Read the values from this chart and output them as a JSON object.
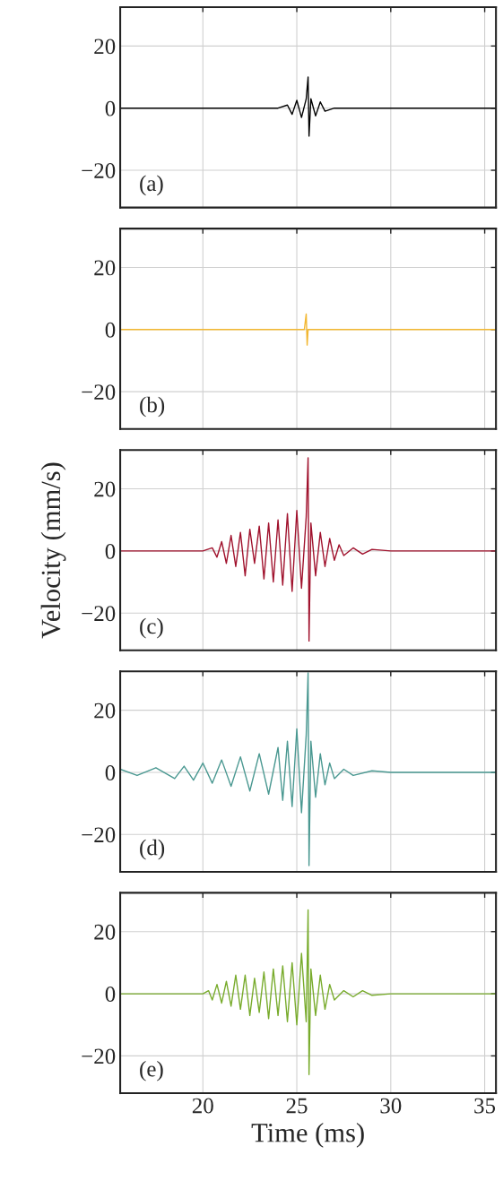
{
  "chart_data": [
    {
      "type": "line",
      "x": [
        15.6,
        24.0,
        24.5,
        24.75,
        25.0,
        25.25,
        25.5,
        25.6,
        25.65,
        25.75,
        26.0,
        26.25,
        26.5,
        27.0,
        35.6
      ],
      "series": [
        {
          "color": "#000000",
          "values": [
            0,
            0,
            1,
            -2,
            2.5,
            -3,
            3,
            10,
            -9,
            3,
            -2.5,
            2,
            -1,
            0,
            0
          ]
        }
      ],
      "xlim": [
        15.6,
        35.6
      ],
      "xticks": [
        20,
        25,
        30,
        35
      ],
      "ylim": [
        -32,
        32.5
      ],
      "yticks": [
        -20,
        0,
        20
      ],
      "grid": true,
      "tick_labels": "y",
      "annotations": [
        "(a)"
      ]
    },
    {
      "type": "line",
      "x": [
        15.6,
        25.4,
        25.5,
        25.55,
        25.6,
        35.6
      ],
      "series": [
        {
          "color": "#f2b731",
          "values": [
            0,
            0,
            5,
            -5,
            0,
            0
          ]
        }
      ],
      "xlim": [
        15.6,
        35.6
      ],
      "xticks": [
        20,
        25,
        30,
        35
      ],
      "ylim": [
        -32,
        32.5
      ],
      "yticks": [
        -20,
        0,
        20
      ],
      "grid": true,
      "tick_labels": "y",
      "annotations": [
        "(b)"
      ]
    },
    {
      "type": "line",
      "x": [
        15.6,
        20.0,
        20.5,
        20.75,
        21.0,
        21.25,
        21.5,
        21.75,
        22.0,
        22.25,
        22.5,
        22.75,
        23.0,
        23.25,
        23.5,
        23.75,
        24.0,
        24.25,
        24.5,
        24.75,
        25.0,
        25.25,
        25.5,
        25.6,
        25.65,
        25.75,
        26.0,
        26.25,
        26.5,
        26.75,
        27.0,
        27.25,
        27.5,
        28.0,
        28.5,
        29.0,
        30.0,
        35.6
      ],
      "series": [
        {
          "color": "#a0122d",
          "values": [
            0,
            0,
            1,
            -2,
            3,
            -4,
            5,
            -5,
            6,
            -8,
            7,
            -4,
            8,
            -9,
            9,
            -10,
            10,
            -11,
            12,
            -13,
            13,
            -12,
            11,
            30,
            -29,
            9,
            -8,
            6,
            -5,
            4,
            -3,
            2,
            -1.5,
            1,
            -1,
            0.5,
            0,
            0
          ]
        }
      ],
      "xlim": [
        15.6,
        35.6
      ],
      "xticks": [
        20,
        25,
        30,
        35
      ],
      "ylim": [
        -32,
        32.5
      ],
      "yticks": [
        -20,
        0,
        20
      ],
      "grid": true,
      "tick_labels": "y",
      "ylabel": "Velocity (mm/s)",
      "annotations": [
        "(c)"
      ]
    },
    {
      "type": "line",
      "x": [
        15.6,
        16.5,
        17.5,
        18.5,
        19.0,
        19.5,
        20.0,
        20.5,
        21.0,
        21.5,
        22.0,
        22.5,
        23.0,
        23.5,
        24.0,
        24.25,
        24.5,
        24.75,
        25.0,
        25.25,
        25.5,
        25.6,
        25.65,
        25.75,
        26.0,
        26.25,
        26.5,
        26.75,
        27.0,
        27.5,
        28.0,
        29.0,
        30.0,
        35.6
      ],
      "series": [
        {
          "color": "#4a9891",
          "values": [
            1,
            -1,
            1.5,
            -2,
            2,
            -2.5,
            3,
            -3.5,
            4,
            -4.5,
            5,
            -6,
            6,
            -7,
            8,
            -9,
            10,
            -11,
            14,
            -13,
            12,
            32,
            -30,
            10,
            -8,
            6,
            -4,
            3,
            -2,
            1,
            -1,
            0.5,
            0,
            0
          ]
        }
      ],
      "xlim": [
        15.6,
        35.6
      ],
      "xticks": [
        20,
        25,
        30,
        35
      ],
      "ylim": [
        -32,
        32.5
      ],
      "yticks": [
        -20,
        0,
        20
      ],
      "grid": true,
      "tick_labels": "y",
      "annotations": [
        "(d)"
      ]
    },
    {
      "type": "line",
      "x": [
        15.6,
        20.0,
        20.3,
        20.5,
        20.75,
        21.0,
        21.25,
        21.5,
        21.75,
        22.0,
        22.25,
        22.5,
        22.75,
        23.0,
        23.25,
        23.5,
        23.75,
        24.0,
        24.25,
        24.5,
        24.75,
        25.0,
        25.25,
        25.5,
        25.6,
        25.65,
        25.75,
        26.0,
        26.25,
        26.5,
        26.75,
        27.0,
        27.5,
        28.0,
        28.5,
        29.0,
        30.0,
        35.6
      ],
      "series": [
        {
          "color": "#78ab2c",
          "values": [
            0,
            0,
            1,
            -2,
            3,
            -3,
            4,
            -4,
            6,
            -5,
            6,
            -7,
            5,
            -6,
            7,
            -8,
            8,
            -7,
            9,
            -9,
            10,
            -10,
            13,
            -9,
            27,
            -26,
            8,
            -7,
            6,
            -5,
            3,
            -2,
            1,
            -1,
            1,
            -0.5,
            0,
            0
          ]
        }
      ],
      "xlim": [
        15.6,
        35.6
      ],
      "xticks": [
        20,
        25,
        30,
        35
      ],
      "ylim": [
        -32,
        32.5
      ],
      "yticks": [
        -20,
        0,
        20
      ],
      "grid": true,
      "xlabel": "Time (ms)",
      "annotations": [
        "(e)"
      ]
    }
  ]
}
